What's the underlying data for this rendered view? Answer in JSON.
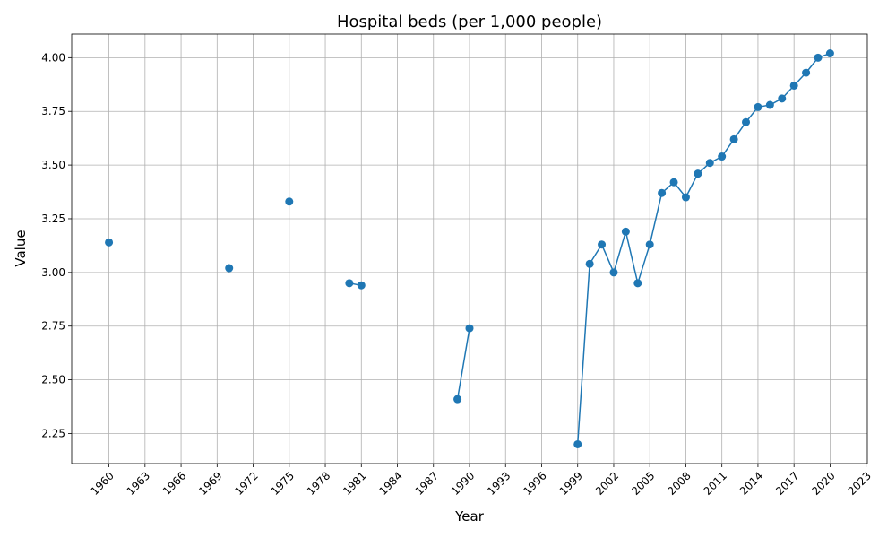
{
  "chart_data": {
    "type": "line",
    "title": "Hospital beds (per 1,000 people)",
    "xlabel": "Year",
    "ylabel": "Value",
    "xlim": [
      1956.9,
      2023.1
    ],
    "ylim": [
      2.11,
      4.11
    ],
    "xticks": [
      1960,
      1963,
      1966,
      1969,
      1972,
      1975,
      1978,
      1981,
      1984,
      1987,
      1990,
      1993,
      1996,
      1999,
      2002,
      2005,
      2008,
      2011,
      2014,
      2017,
      2020,
      2023
    ],
    "xtick_labels": [
      "1960",
      "1963",
      "1966",
      "1969",
      "1972",
      "1975",
      "1978",
      "1981",
      "1984",
      "1987",
      "1990",
      "1993",
      "1996",
      "1999",
      "2002",
      "2005",
      "2008",
      "2011",
      "2014",
      "2017",
      "2020",
      "2023"
    ],
    "yticks": [
      2.25,
      2.5,
      2.75,
      3.0,
      3.25,
      3.5,
      3.75,
      4.0
    ],
    "ytick_labels": [
      "2.25",
      "2.50",
      "2.75",
      "3.00",
      "3.25",
      "3.50",
      "3.75",
      "4.00"
    ],
    "grid": true,
    "color": "#1f77b4",
    "series": [
      {
        "points": [
          [
            1960,
            3.14
          ],
          [
            1970,
            3.02
          ],
          [
            1975,
            3.33
          ],
          [
            1980,
            2.95
          ],
          [
            1981,
            2.94
          ],
          [
            1989,
            2.41
          ],
          [
            1990,
            2.74
          ],
          [
            1999,
            2.2
          ],
          [
            2000,
            3.04
          ],
          [
            2001,
            3.13
          ],
          [
            2002,
            3.0
          ],
          [
            2003,
            3.19
          ],
          [
            2004,
            2.95
          ],
          [
            2005,
            3.13
          ],
          [
            2006,
            3.37
          ],
          [
            2007,
            3.42
          ],
          [
            2008,
            3.35
          ],
          [
            2009,
            3.46
          ],
          [
            2010,
            3.51
          ],
          [
            2011,
            3.54
          ],
          [
            2012,
            3.62
          ],
          [
            2013,
            3.7
          ],
          [
            2014,
            3.77
          ],
          [
            2015,
            3.78
          ],
          [
            2016,
            3.81
          ],
          [
            2017,
            3.87
          ],
          [
            2018,
            3.93
          ],
          [
            2019,
            4.0
          ],
          [
            2020,
            4.02
          ]
        ]
      }
    ]
  }
}
